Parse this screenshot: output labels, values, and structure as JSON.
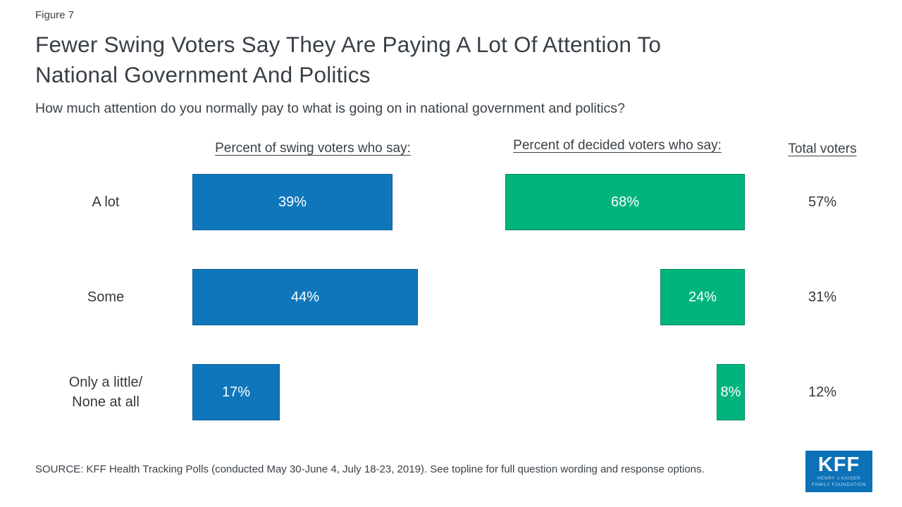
{
  "figure_label": "Figure 7",
  "title": "Fewer Swing Voters Say They Are Paying A Lot Of Attention To\nNational Government And Politics",
  "subtitle": "How much attention do you normally pay to what is going on in national government and politics?",
  "source": "SOURCE: KFF Health Tracking Polls (conducted May 30-June 4, July 18-23, 2019). See topline for full question wording and response options.",
  "logo": {
    "acronym": "KFF",
    "line1": "HENRY J KAISER",
    "line2": "FAMILY FOUNDATION"
  },
  "colors": {
    "swing": "#0f76bc",
    "decided": "#00b47e",
    "logo_bg": "#0c71b7",
    "text": "#3a4147"
  },
  "chart_data": {
    "type": "bar",
    "orientation": "horizontal",
    "title": "Fewer Swing Voters Say They Are Paying A Lot Of Attention To National Government And Politics",
    "question": "How much attention do you normally pay to what is going on in national government and politics?",
    "categories": [
      "A lot",
      "Some",
      "Only a little/\nNone at all"
    ],
    "series": [
      {
        "name": "Percent of swing voters who say:",
        "values": [
          39,
          44,
          17
        ]
      },
      {
        "name": "Percent of decided voters who say:",
        "values": [
          68,
          24,
          8
        ]
      },
      {
        "name": "Total voters",
        "values": [
          57,
          31,
          12
        ]
      }
    ],
    "value_suffix": "%",
    "legend_position": "column-headers",
    "grid": false,
    "xlim": [
      0,
      100
    ]
  }
}
